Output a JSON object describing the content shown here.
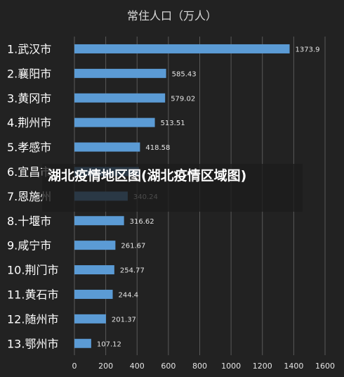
{
  "overlay": {
    "text": "湖北疫情地区图(湖北疫情区域图)"
  },
  "chart_data": {
    "type": "bar",
    "orientation": "horizontal",
    "title": "常住人口（万人）",
    "categories": [
      "1.武汉市",
      "2.襄阳市",
      "3.黄冈市",
      "4.荆州市",
      "5.孝感市",
      "6.宜昌市",
      "7.恩施州",
      "8.十堰市",
      "9.咸宁市",
      "10.荆门市",
      "11.黄石市",
      "12.随州市",
      "13.鄂州市"
    ],
    "values": [
      1373.9,
      585.43,
      579.02,
      513.51,
      418.58,
      411.5,
      340.24,
      316.62,
      261.67,
      254.77,
      244.4,
      201.37,
      107.12
    ],
    "value_labels": [
      "1373.9",
      "585.43",
      "579.02",
      "513.51",
      "418.58",
      "",
      "340.24",
      "316.62",
      "261.67",
      "254.77",
      "244.4",
      "201.37",
      "107.12"
    ],
    "xlim": [
      0,
      1600
    ],
    "xticks": [
      0,
      200,
      400,
      600,
      800,
      1000,
      1200,
      1400,
      1600
    ],
    "grid": true,
    "colors": {
      "bar": "#5b9bd5",
      "grid": "#595959",
      "text": "#ffffff",
      "label": "#e6e6e6"
    }
  }
}
